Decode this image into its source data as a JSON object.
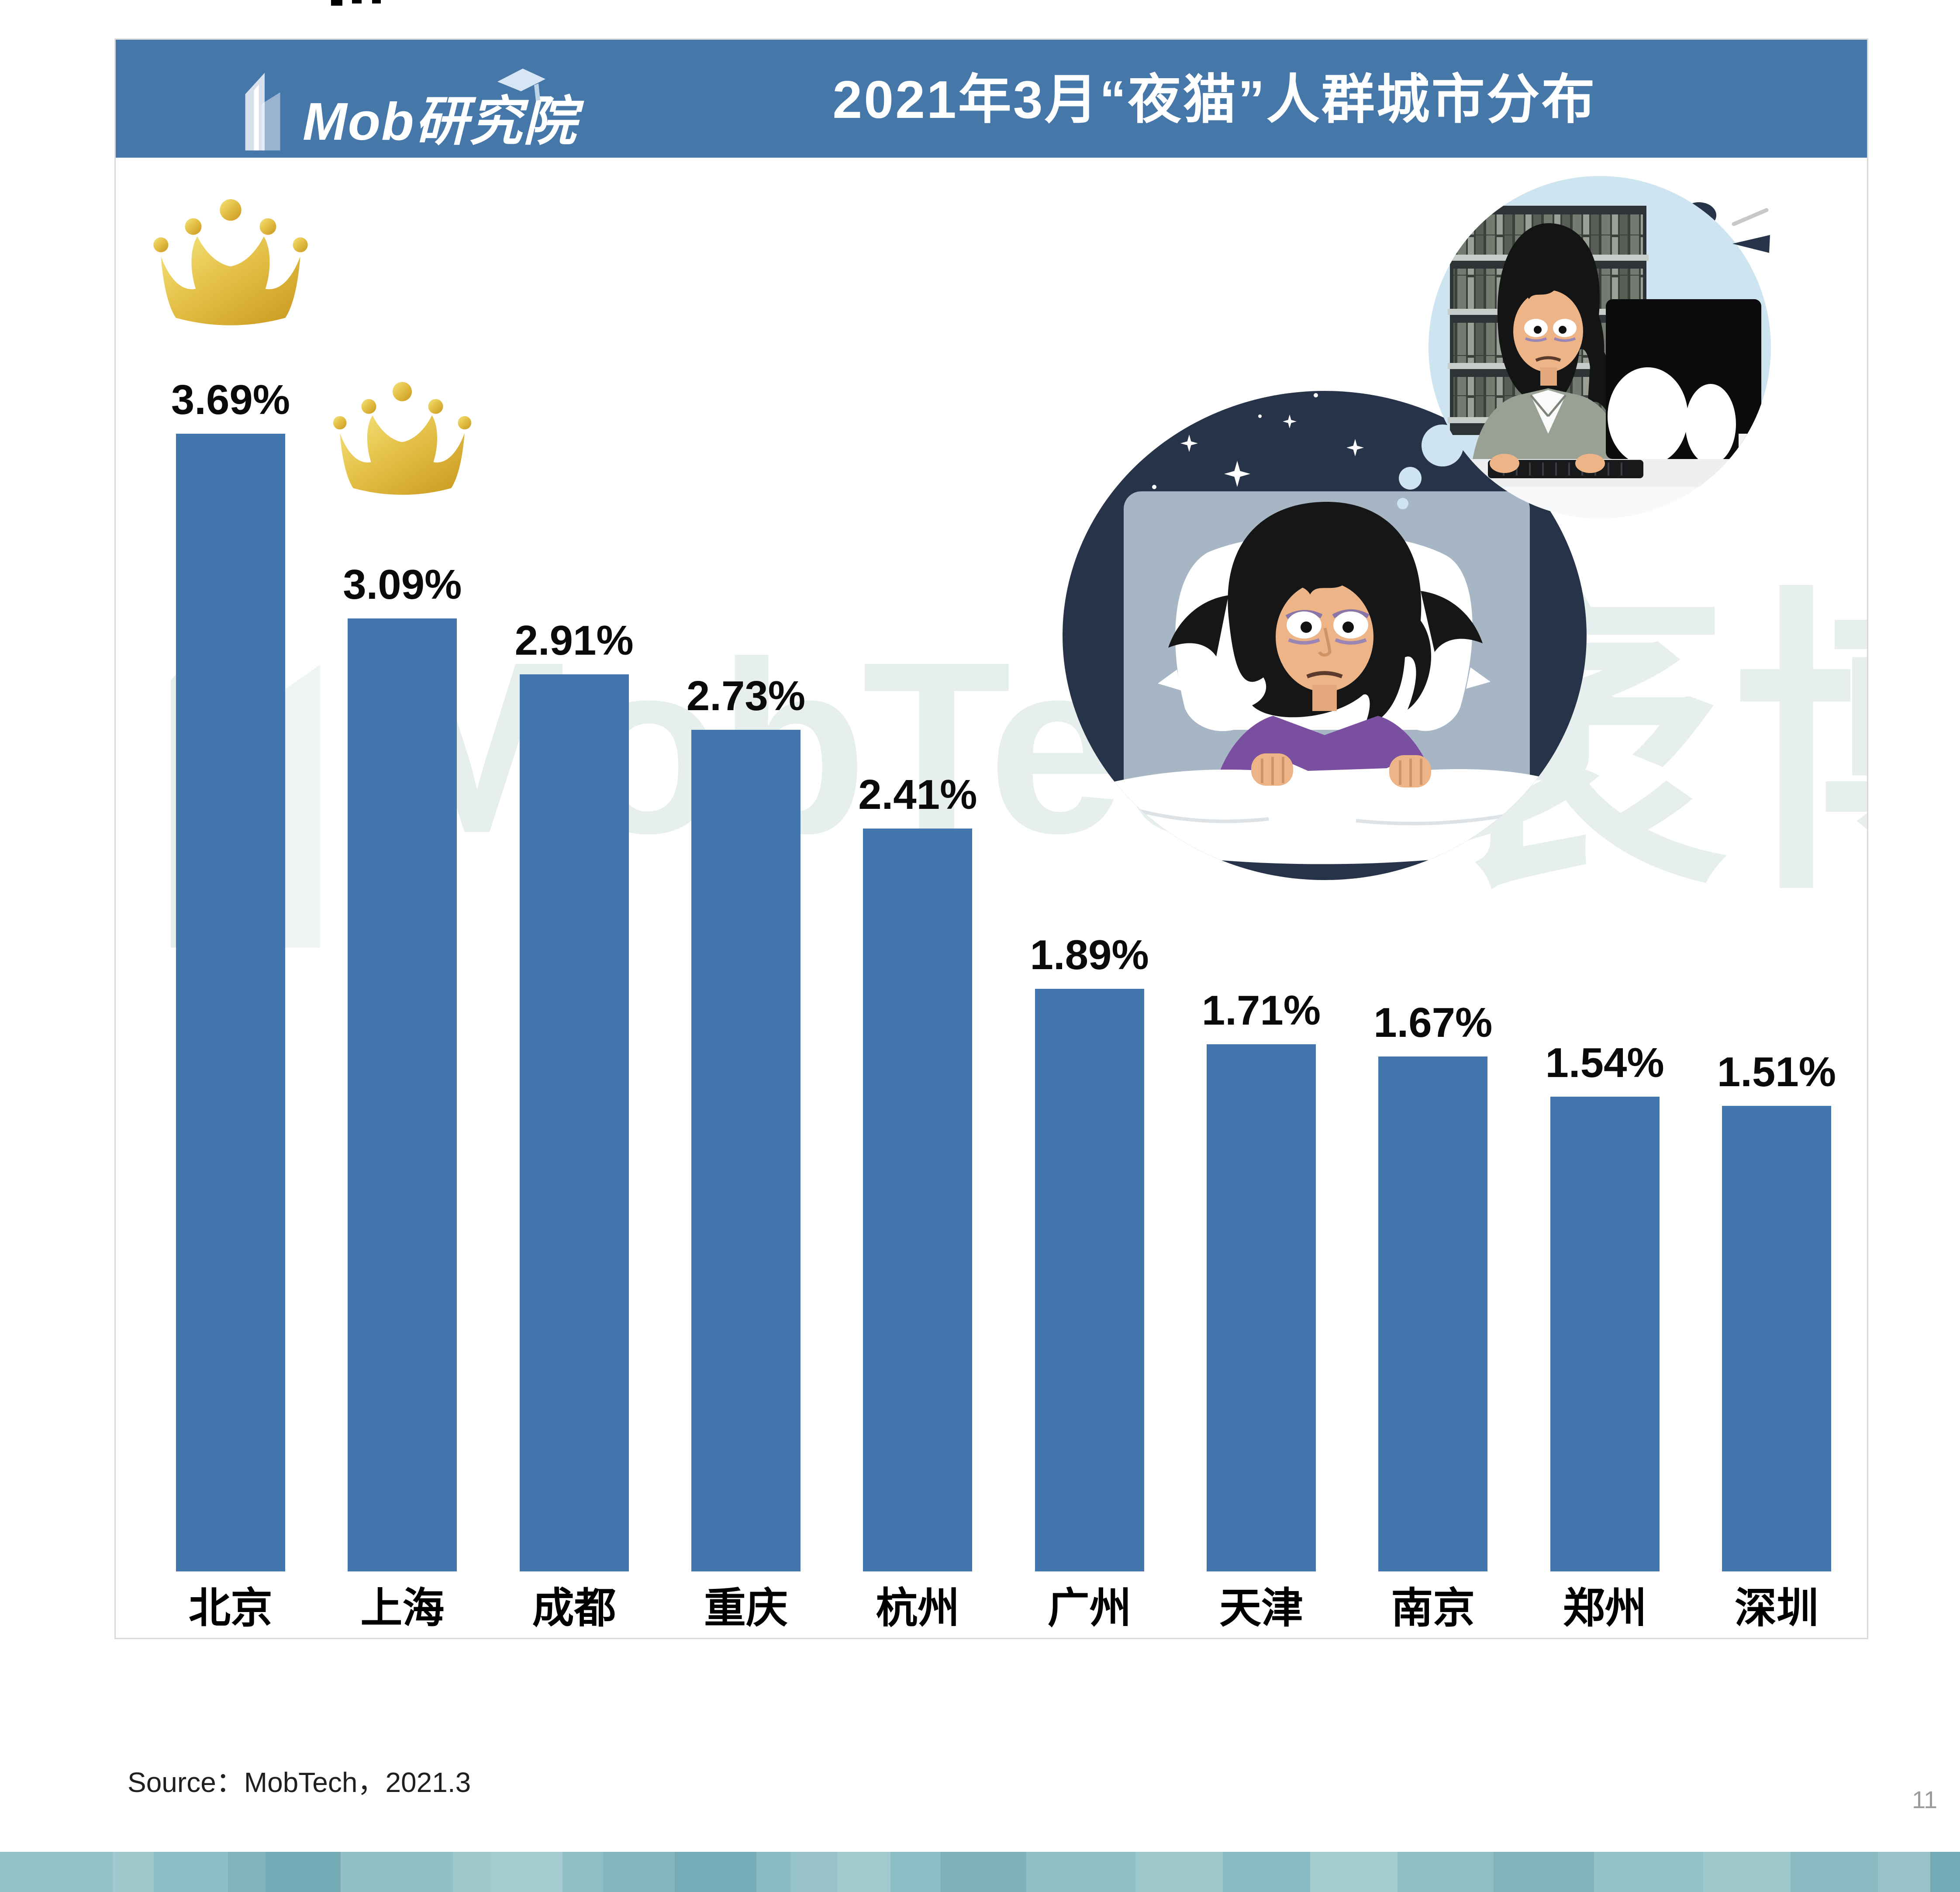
{
  "header": {
    "logo_text": "Mob研究院",
    "title": "2021年3月“夜猫”人群城市分布"
  },
  "chart_data": {
    "type": "bar",
    "title": "2021年3月“夜猫”人群城市分布",
    "categories": [
      "北京",
      "上海",
      "成都",
      "重庆",
      "杭州",
      "广州",
      "天津",
      "南京",
      "郑州",
      "深圳"
    ],
    "values": [
      3.69,
      3.09,
      2.91,
      2.73,
      2.41,
      1.89,
      1.71,
      1.67,
      1.54,
      1.51
    ],
    "values_display": [
      "3.69%",
      "3.09%",
      "2.91%",
      "2.73%",
      "2.41%",
      "1.89%",
      "1.71%",
      "1.67%",
      "1.54%",
      "1.51%"
    ],
    "unit": "%",
    "ylim": [
      0,
      4
    ],
    "grid": "off",
    "legend": "none",
    "bar_color": "#4276ac",
    "crowned_categories": [
      "北京",
      "上海"
    ]
  },
  "watermark": {
    "text_en": "MobTech",
    "text_cn": "袤博"
  },
  "source": {
    "label": "Source：MobTech，2021.3"
  },
  "page_number": "11",
  "icons": {
    "crown": "crown-icon",
    "building": "building-icon",
    "graduation_cap": "graduation-cap-icon",
    "stars": "night-stars-icon",
    "thought_bubble": "thought-bubble-icon"
  },
  "colors": {
    "header_blue": "#4577a9",
    "bar_blue": "#4276ac",
    "crown_gold": "#dfb93a",
    "night_navy": "#263349",
    "bubble_blue": "#cfe4f1",
    "watermark_teal": "#e7efee",
    "card_border": "#d9d9d9",
    "page_number_gray": "#9b9b9b",
    "footer_teal": "#8abac3"
  }
}
